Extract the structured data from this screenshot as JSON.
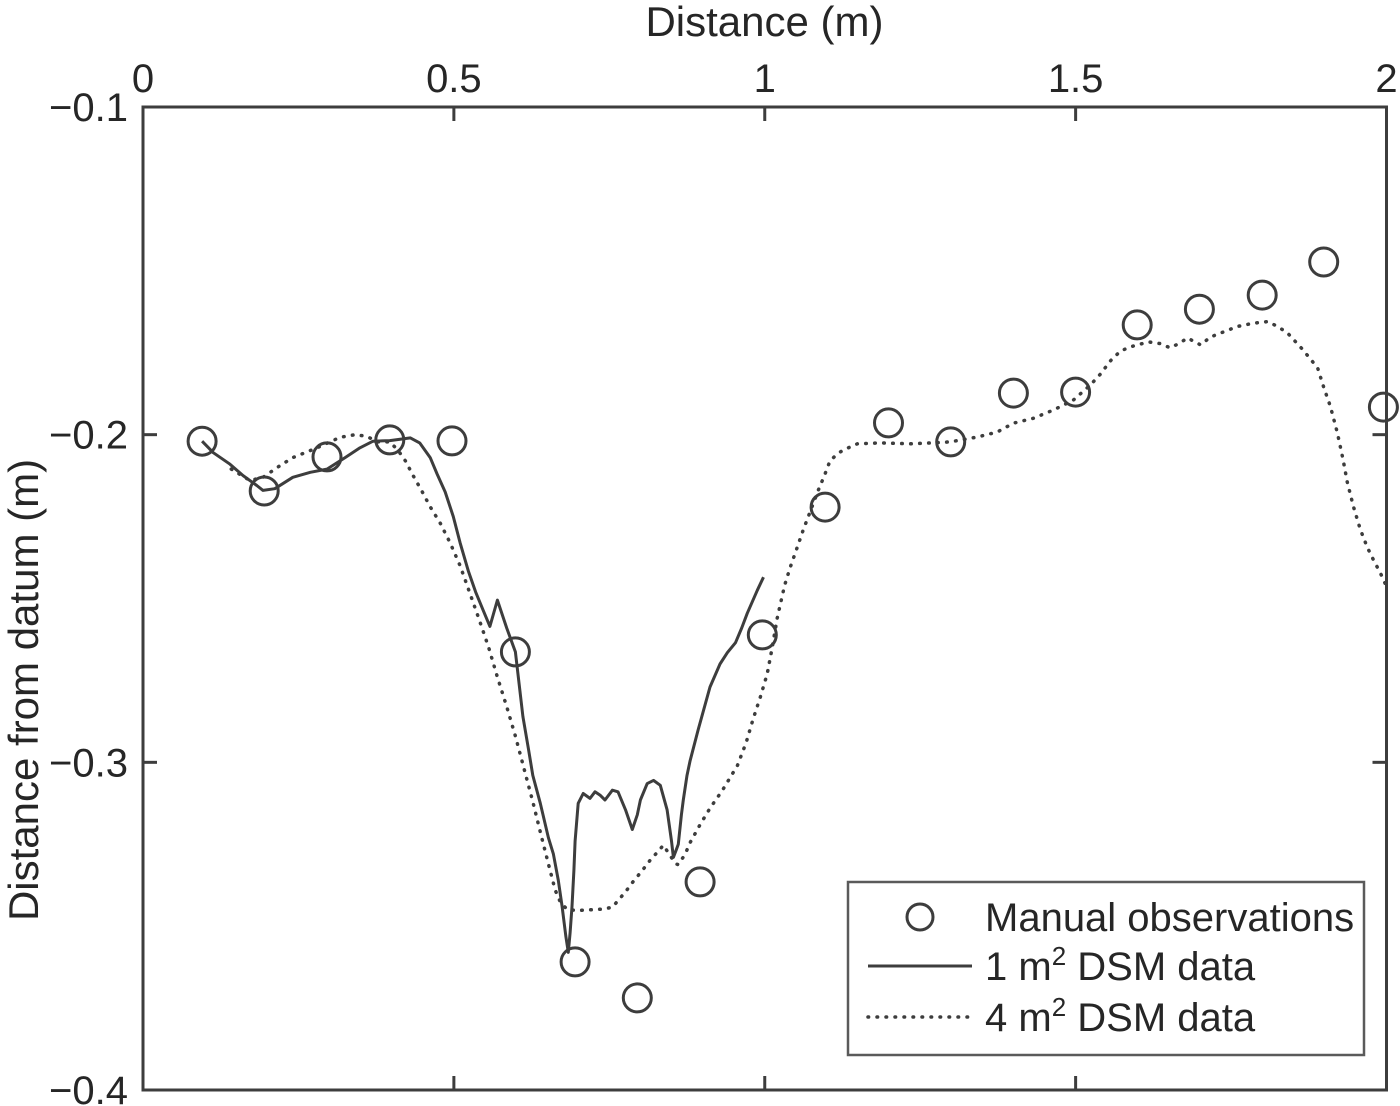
{
  "colors": {
    "background": "#ffffff",
    "ink_text": "#262626",
    "ink_line": "#3d3d3d",
    "legend_border": "#5a5a5a"
  },
  "legend": {
    "position": "lower right",
    "items": [
      {
        "marker": "circle-marker",
        "pre": "Manual observations",
        "sup": "",
        "post": ""
      },
      {
        "marker": "solid-line",
        "pre": "1 m",
        "sup": "2",
        "post": " DSM data"
      },
      {
        "marker": "dotted-line",
        "pre": "4 m",
        "sup": "2",
        "post": " DSM data"
      }
    ]
  },
  "chart_data": {
    "type": "line",
    "title": "",
    "xlabel": "Distance (m)",
    "ylabel": "Distance from datum (m)",
    "xlim": [
      0,
      2
    ],
    "ylim": [
      -0.4,
      -0.1
    ],
    "x_axis_position": "top",
    "grid": false,
    "legend_position": "lower right",
    "x_ticks": [
      0,
      0.5,
      1,
      1.5,
      2
    ],
    "x_tick_labels": [
      "0",
      "0.5",
      "1",
      "1.5",
      "2"
    ],
    "y_ticks": [
      -0.1,
      -0.2,
      -0.3,
      -0.4
    ],
    "y_tick_labels": [
      "−0.1",
      "−0.2",
      "−0.3",
      "−0.4"
    ],
    "series": [
      {
        "name": "Manual observations",
        "type": "scatter",
        "marker": "circle",
        "fill": "none",
        "points": [
          [
            0.095,
            -0.202
          ],
          [
            0.195,
            -0.2172
          ],
          [
            0.296,
            -0.2068
          ],
          [
            0.397,
            -0.2016
          ],
          [
            0.497,
            -0.2019
          ],
          [
            0.599,
            -0.2663
          ],
          [
            0.695,
            -0.3609
          ],
          [
            0.795,
            -0.3719
          ],
          [
            0.896,
            -0.3365
          ],
          [
            0.996,
            -0.2611
          ],
          [
            1.097,
            -0.2221
          ],
          [
            1.199,
            -0.1964
          ],
          [
            1.299,
            -0.2022
          ],
          [
            1.4,
            -0.1873
          ],
          [
            1.5,
            -0.187
          ],
          [
            1.599,
            -0.1665
          ],
          [
            1.699,
            -0.1617
          ],
          [
            1.8,
            -0.1574
          ],
          [
            1.899,
            -0.1473
          ],
          [
            1.995,
            -0.1916
          ]
        ]
      },
      {
        "name": "1 m2 DSM data",
        "type": "line",
        "linestyle": "solid",
        "points": [
          [
            0.095,
            -0.202
          ],
          [
            0.113,
            -0.2055
          ],
          [
            0.14,
            -0.209
          ],
          [
            0.161,
            -0.2125
          ],
          [
            0.183,
            -0.2155
          ],
          [
            0.193,
            -0.217
          ],
          [
            0.212,
            -0.2165
          ],
          [
            0.241,
            -0.213
          ],
          [
            0.269,
            -0.2115
          ],
          [
            0.296,
            -0.2105
          ],
          [
            0.325,
            -0.207
          ],
          [
            0.349,
            -0.204
          ],
          [
            0.37,
            -0.202
          ],
          [
            0.397,
            -0.2018
          ],
          [
            0.43,
            -0.201
          ],
          [
            0.445,
            -0.2025
          ],
          [
            0.462,
            -0.207
          ],
          [
            0.473,
            -0.212
          ],
          [
            0.486,
            -0.2175
          ],
          [
            0.499,
            -0.225
          ],
          [
            0.51,
            -0.233
          ],
          [
            0.523,
            -0.2415
          ],
          [
            0.535,
            -0.248
          ],
          [
            0.548,
            -0.254
          ],
          [
            0.558,
            -0.2585
          ],
          [
            0.57,
            -0.2505
          ],
          [
            0.57,
            -0.2505
          ],
          [
            0.585,
            -0.259
          ],
          [
            0.599,
            -0.2663
          ],
          [
            0.611,
            -0.286
          ],
          [
            0.62,
            -0.296
          ],
          [
            0.627,
            -0.304
          ],
          [
            0.639,
            -0.3125
          ],
          [
            0.652,
            -0.323
          ],
          [
            0.66,
            -0.328
          ],
          [
            0.668,
            -0.336
          ],
          [
            0.674,
            -0.344
          ],
          [
            0.68,
            -0.353
          ],
          [
            0.684,
            -0.358
          ],
          [
            0.687,
            -0.352
          ],
          [
            0.69,
            -0.344
          ],
          [
            0.693,
            -0.333
          ],
          [
            0.695,
            -0.324
          ],
          [
            0.7,
            -0.3125
          ],
          [
            0.708,
            -0.3095
          ],
          [
            0.719,
            -0.311
          ],
          [
            0.727,
            -0.309
          ],
          [
            0.735,
            -0.31
          ],
          [
            0.743,
            -0.3115
          ],
          [
            0.755,
            -0.3085
          ],
          [
            0.764,
            -0.309
          ],
          [
            0.776,
            -0.3145
          ],
          [
            0.787,
            -0.3205
          ],
          [
            0.795,
            -0.316
          ],
          [
            0.8,
            -0.3115
          ],
          [
            0.811,
            -0.3065
          ],
          [
            0.821,
            -0.3055
          ],
          [
            0.832,
            -0.307
          ],
          [
            0.843,
            -0.3145
          ],
          [
            0.85,
            -0.324
          ],
          [
            0.853,
            -0.329
          ],
          [
            0.858,
            -0.3265
          ],
          [
            0.861,
            -0.325
          ],
          [
            0.866,
            -0.316
          ],
          [
            0.869,
            -0.3115
          ],
          [
            0.875,
            -0.304
          ],
          [
            0.88,
            -0.2995
          ],
          [
            0.893,
            -0.29
          ],
          [
            0.912,
            -0.277
          ],
          [
            0.928,
            -0.27
          ],
          [
            0.94,
            -0.2665
          ],
          [
            0.953,
            -0.2635
          ],
          [
            0.963,
            -0.259
          ],
          [
            0.972,
            -0.2545
          ],
          [
            0.988,
            -0.2475
          ],
          [
            0.998,
            -0.2435
          ]
        ]
      },
      {
        "name": "4 m2 DSM data",
        "type": "line",
        "linestyle": "dotted",
        "points": [
          [
            0.142,
            -0.2105
          ],
          [
            0.172,
            -0.214
          ],
          [
            0.193,
            -0.213
          ],
          [
            0.22,
            -0.2095
          ],
          [
            0.241,
            -0.207
          ],
          [
            0.28,
            -0.204
          ],
          [
            0.317,
            -0.2008
          ],
          [
            0.341,
            -0.2
          ],
          [
            0.36,
            -0.2005
          ],
          [
            0.377,
            -0.2022
          ],
          [
            0.397,
            -0.2022
          ],
          [
            0.41,
            -0.2047
          ],
          [
            0.422,
            -0.208
          ],
          [
            0.434,
            -0.2123
          ],
          [
            0.448,
            -0.217
          ],
          [
            0.462,
            -0.222
          ],
          [
            0.478,
            -0.227
          ],
          [
            0.494,
            -0.233
          ],
          [
            0.51,
            -0.24
          ],
          [
            0.525,
            -0.248
          ],
          [
            0.54,
            -0.256
          ],
          [
            0.556,
            -0.265
          ],
          [
            0.57,
            -0.274
          ],
          [
            0.585,
            -0.283
          ],
          [
            0.599,
            -0.292
          ],
          [
            0.613,
            -0.302
          ],
          [
            0.627,
            -0.312
          ],
          [
            0.64,
            -0.322
          ],
          [
            0.652,
            -0.331
          ],
          [
            0.663,
            -0.339
          ],
          [
            0.672,
            -0.343
          ],
          [
            0.683,
            -0.345
          ],
          [
            0.7,
            -0.3452
          ],
          [
            0.72,
            -0.345
          ],
          [
            0.74,
            -0.3448
          ],
          [
            0.755,
            -0.3442
          ],
          [
            0.776,
            -0.3395
          ],
          [
            0.788,
            -0.3365
          ],
          [
            0.803,
            -0.333
          ],
          [
            0.816,
            -0.3298
          ],
          [
            0.827,
            -0.3275
          ],
          [
            0.837,
            -0.3253
          ],
          [
            0.848,
            -0.3285
          ],
          [
            0.857,
            -0.331
          ],
          [
            0.861,
            -0.3312
          ],
          [
            0.872,
            -0.328
          ],
          [
            0.88,
            -0.3245
          ],
          [
            0.896,
            -0.319
          ],
          [
            0.912,
            -0.314
          ],
          [
            0.932,
            -0.3085
          ],
          [
            0.948,
            -0.3035
          ],
          [
            0.956,
            -0.301
          ],
          [
            0.97,
            -0.294
          ],
          [
            0.981,
            -0.287
          ],
          [
            0.993,
            -0.28
          ],
          [
            1.004,
            -0.273
          ],
          [
            1.012,
            -0.265
          ],
          [
            1.02,
            -0.256
          ],
          [
            1.032,
            -0.246
          ],
          [
            1.041,
            -0.2405
          ],
          [
            1.052,
            -0.2345
          ],
          [
            1.062,
            -0.229
          ],
          [
            1.074,
            -0.223
          ],
          [
            1.086,
            -0.217
          ],
          [
            1.096,
            -0.2125
          ],
          [
            1.105,
            -0.208
          ],
          [
            1.116,
            -0.206
          ],
          [
            1.126,
            -0.2047
          ],
          [
            1.149,
            -0.2028
          ],
          [
            1.186,
            -0.2025
          ],
          [
            1.234,
            -0.2028
          ],
          [
            1.27,
            -0.2025
          ],
          [
            1.298,
            -0.2022
          ],
          [
            1.342,
            -0.2007
          ],
          [
            1.374,
            -0.1992
          ],
          [
            1.4,
            -0.1965
          ],
          [
            1.432,
            -0.195
          ],
          [
            1.464,
            -0.1925
          ],
          [
            1.496,
            -0.1895
          ],
          [
            1.524,
            -0.1848
          ],
          [
            1.54,
            -0.1815
          ],
          [
            1.556,
            -0.1775
          ],
          [
            1.572,
            -0.1745
          ],
          [
            1.588,
            -0.1732
          ],
          [
            1.617,
            -0.1717
          ],
          [
            1.636,
            -0.1722
          ],
          [
            1.652,
            -0.1735
          ],
          [
            1.666,
            -0.1722
          ],
          [
            1.68,
            -0.1705
          ],
          [
            1.69,
            -0.1715
          ],
          [
            1.701,
            -0.1726
          ],
          [
            1.717,
            -0.1702
          ],
          [
            1.733,
            -0.169
          ],
          [
            1.76,
            -0.167
          ],
          [
            1.785,
            -0.166
          ],
          [
            1.809,
            -0.1655
          ],
          [
            1.825,
            -0.167
          ],
          [
            1.841,
            -0.169
          ],
          [
            1.866,
            -0.1742
          ],
          [
            1.88,
            -0.1775
          ],
          [
            1.889,
            -0.1795
          ],
          [
            1.899,
            -0.1855
          ],
          [
            1.91,
            -0.1915
          ],
          [
            1.921,
            -0.1995
          ],
          [
            1.93,
            -0.2075
          ],
          [
            1.937,
            -0.2145
          ],
          [
            1.947,
            -0.222
          ],
          [
            1.958,
            -0.229
          ],
          [
            1.969,
            -0.2343
          ],
          [
            1.979,
            -0.2382
          ],
          [
            1.99,
            -0.2422
          ],
          [
            1.998,
            -0.2455
          ]
        ]
      }
    ]
  }
}
